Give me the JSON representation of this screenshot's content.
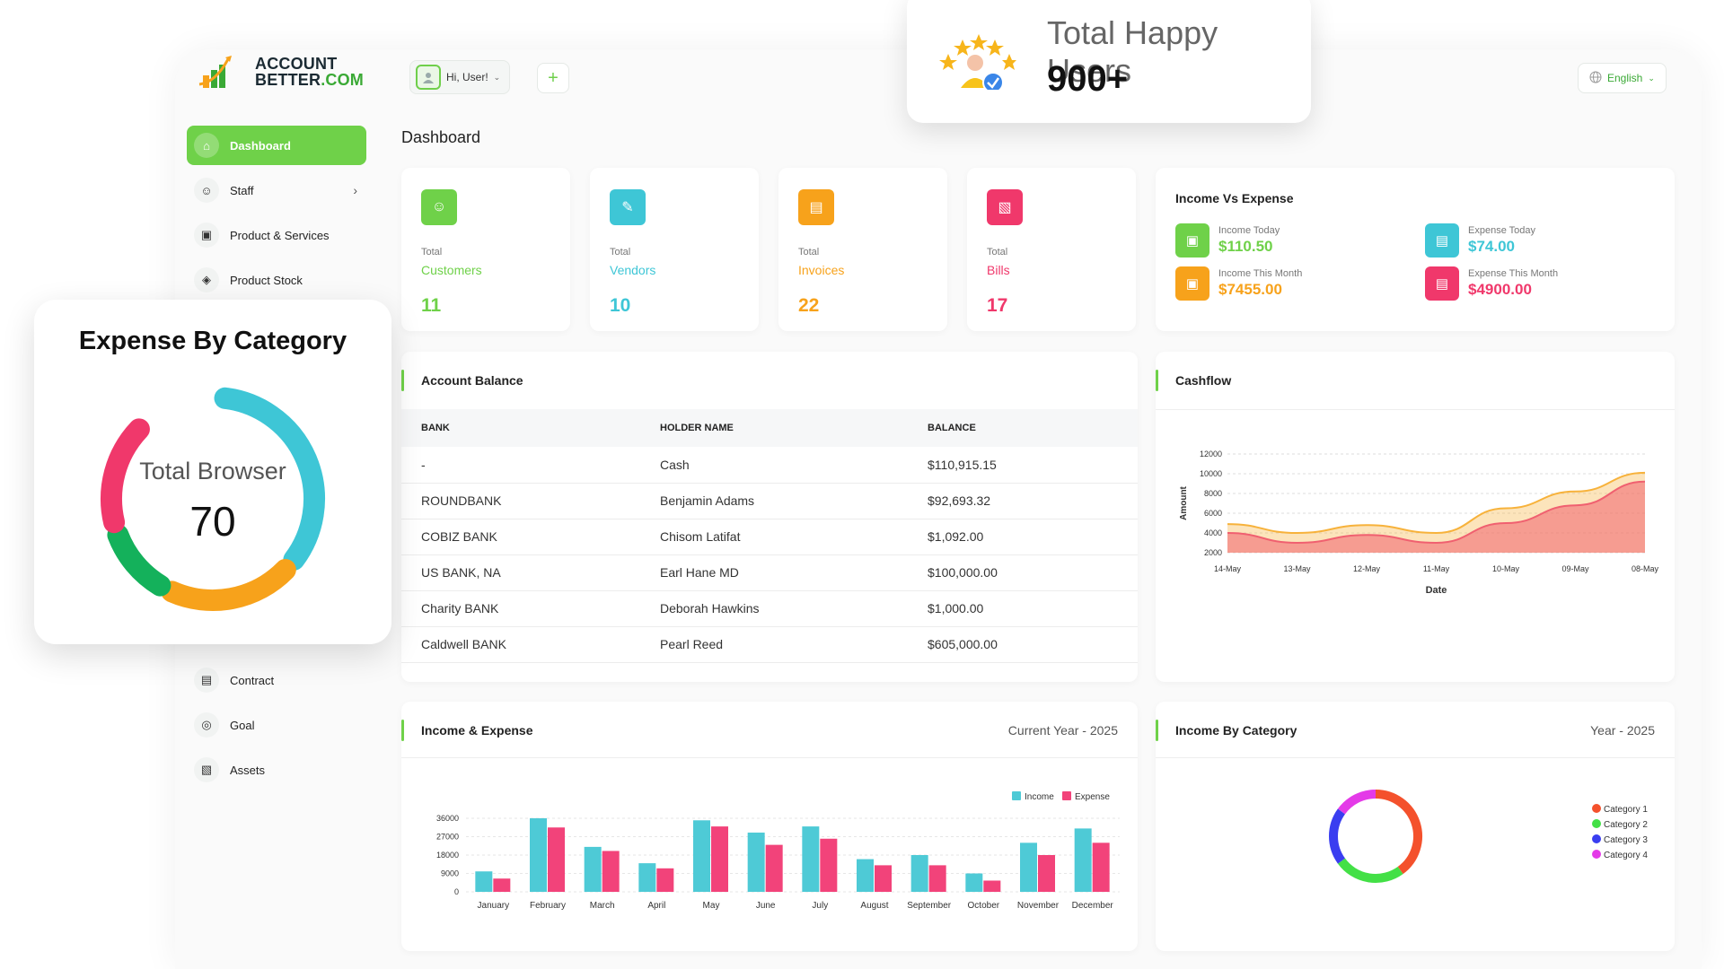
{
  "logo": {
    "line1": "ACCOUNT",
    "line2a": "BETTER",
    "line2b": ".COM"
  },
  "topbar": {
    "user_greeting": "Hi, User!",
    "plus": "+",
    "language": "English"
  },
  "sidebar": {
    "items": [
      {
        "label": "Dashboard",
        "icon": "home-icon",
        "active": true
      },
      {
        "label": "Staff",
        "icon": "users-icon"
      },
      {
        "label": "Product & Services",
        "icon": "cart-icon"
      },
      {
        "label": "Product Stock",
        "icon": "box-icon"
      }
    ],
    "lower_items": [
      {
        "label": "Contract",
        "icon": "contract-icon"
      },
      {
        "label": "Goal",
        "icon": "target-icon"
      },
      {
        "label": "Assets",
        "icon": "assets-icon"
      }
    ]
  },
  "page_title": "Dashboard",
  "stats": [
    {
      "sub": "Total",
      "label": "Customers",
      "value": "11",
      "color": "#6fd149",
      "icon": "users-icon"
    },
    {
      "sub": "Total",
      "label": "Vendors",
      "value": "10",
      "color": "#3ec6d6",
      "icon": "note-icon"
    },
    {
      "sub": "Total",
      "label": "Invoices",
      "value": "22",
      "color": "#f7a21b",
      "icon": "document-icon"
    },
    {
      "sub": "Total",
      "label": "Bills",
      "value": "17",
      "color": "#f0386b",
      "icon": "bill-icon"
    }
  ],
  "income_vs_expense": {
    "title": "Income Vs Expense",
    "items": [
      {
        "label": "Income Today",
        "value": "$110.50",
        "color": "#6fd149"
      },
      {
        "label": "Expense Today",
        "value": "$74.00",
        "color": "#3ec6d6"
      },
      {
        "label": "Income This Month",
        "value": "$7455.00",
        "color": "#f7a21b"
      },
      {
        "label": "Expense This Month",
        "value": "$4900.00",
        "color": "#f0386b"
      }
    ]
  },
  "account_balance": {
    "title": "Account Balance",
    "columns": [
      "BANK",
      "HOLDER NAME",
      "BALANCE"
    ],
    "rows": [
      [
        "-",
        "Cash",
        "$110,915.15"
      ],
      [
        "ROUNDBANK",
        "Benjamin Adams",
        "$92,693.32"
      ],
      [
        "COBIZ BANK",
        "Chisom Latifat",
        "$1,092.00"
      ],
      [
        "US BANK, NA",
        "Earl Hane MD",
        "$100,000.00"
      ],
      [
        "Charity BANK",
        "Deborah Hawkins",
        "$1,000.00"
      ],
      [
        "Caldwell BANK",
        "Pearl Reed",
        "$605,000.00"
      ]
    ]
  },
  "cashflow": {
    "title": "Cashflow"
  },
  "income_expense": {
    "title": "Income & Expense",
    "period": "Current Year - 2025"
  },
  "income_by_category": {
    "title": "Income By Category",
    "period": "Year - 2025"
  },
  "float_users": {
    "title": "Total Happy Users",
    "value": "900+"
  },
  "float_expense": {
    "title": "Expense By Category",
    "center_label": "Total Browser",
    "center_value": "70"
  },
  "chart_data": [
    {
      "type": "area",
      "ylabel": "Amount",
      "xlabel": "Date",
      "x": [
        "14-May",
        "13-May",
        "12-May",
        "11-May",
        "10-May",
        "09-May",
        "08-May"
      ],
      "yticks": [
        2000,
        4000,
        6000,
        8000,
        10000,
        12000
      ],
      "ylim": [
        2000,
        12000
      ],
      "series": [
        {
          "values": [
            4900,
            4000,
            4800,
            4000,
            6500,
            8200,
            10100
          ],
          "color": "#f7b23b"
        },
        {
          "values": [
            4000,
            3000,
            3800,
            3000,
            5000,
            6800,
            9200
          ],
          "color": "#f06070"
        }
      ]
    },
    {
      "type": "bar",
      "categories": [
        "January",
        "February",
        "March",
        "April",
        "May",
        "June",
        "July",
        "August",
        "September",
        "October",
        "November",
        "December"
      ],
      "yticks": [
        0,
        9000,
        18000,
        27000,
        36000
      ],
      "ylim": [
        0,
        36000
      ],
      "series": [
        {
          "name": "Income",
          "color": "#4ecad6",
          "values": [
            10000,
            36000,
            22000,
            14000,
            35000,
            29000,
            32000,
            16000,
            18000,
            9000,
            24000,
            31000
          ]
        },
        {
          "name": "Expense",
          "color": "#f2437a",
          "values": [
            6500,
            31500,
            20000,
            11500,
            32000,
            23000,
            26000,
            13000,
            13000,
            5500,
            18000,
            24000
          ]
        }
      ]
    },
    {
      "type": "pie",
      "categories": [
        "Category 1",
        "Category 2",
        "Category 3",
        "Category 4"
      ],
      "values": [
        40,
        25,
        20,
        15
      ],
      "colors": [
        "#f4512c",
        "#43e046",
        "#3a3ef0",
        "#e43ae8"
      ]
    },
    {
      "type": "pie",
      "values": [
        38,
        22,
        12,
        18
      ],
      "colors": [
        "#3ec6d6",
        "#f7a21b",
        "#14b15b",
        "#f0386b"
      ]
    }
  ]
}
